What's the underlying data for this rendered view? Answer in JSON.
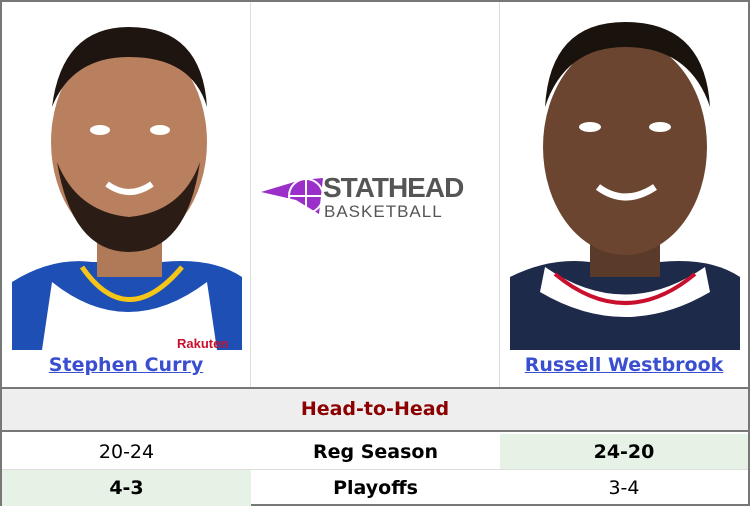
{
  "players": [
    {
      "name": "Stephen Curry",
      "jersey_colors": [
        "#1d4fb5",
        "#ffffff",
        "#f5c518"
      ]
    },
    {
      "name": "Russell Westbrook",
      "jersey_colors": [
        "#1e2a4a",
        "#ffffff",
        "#c8102e"
      ]
    }
  ],
  "logo": {
    "line1": "STATHEAD",
    "line2": "BASKETBALL",
    "accent": "#9b2fc9",
    "text_color": "#555555"
  },
  "section_title": "Head-to-Head",
  "rows": [
    {
      "label": "Reg Season",
      "left": "20-24",
      "right": "24-20",
      "winner": "right"
    },
    {
      "label": "Playoffs",
      "left": "4-3",
      "right": "3-4",
      "winner": "left"
    }
  ],
  "colors": {
    "link": "#3a4fd0",
    "title": "#8b0000",
    "win_bg": "#e6f2e6"
  }
}
